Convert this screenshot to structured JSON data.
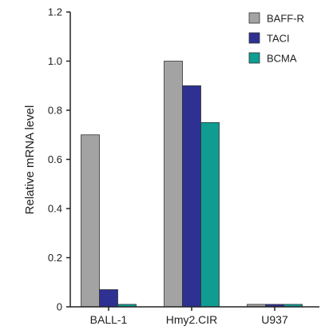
{
  "chart_data": {
    "type": "bar",
    "title": "",
    "xlabel": "",
    "ylabel": "Relative mRNA level",
    "ylim": [
      0,
      1.2
    ],
    "yticks": [
      "0",
      "0.2",
      "0.4",
      "0.6",
      "0.8",
      "1.0",
      "1.2"
    ],
    "categories": [
      "BALL-1",
      "Hmy2.CIR",
      "U937"
    ],
    "series": [
      {
        "name": "BAFF-R",
        "color": "#a3a3a3",
        "values": [
          0.7,
          1.0,
          0.01
        ]
      },
      {
        "name": "TACI",
        "color": "#2e3192",
        "values": [
          0.07,
          0.9,
          0.01
        ]
      },
      {
        "name": "BCMA",
        "color": "#0f9d92",
        "values": [
          0.01,
          0.75,
          0.01
        ]
      }
    ],
    "legend_position": "top-right",
    "grid": false
  }
}
